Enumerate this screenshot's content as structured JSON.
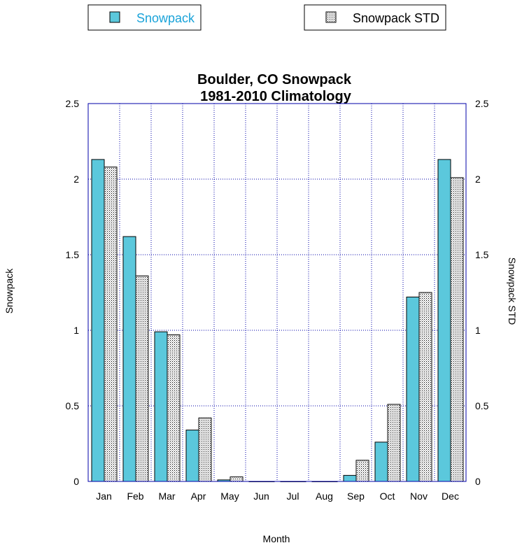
{
  "chart_data": {
    "type": "bar",
    "title": [
      "Boulder, CO Snowpack",
      "1981-2010 Climatology"
    ],
    "xlabel": "Month",
    "ylabel": "Snowpack",
    "y2label": "Snowpack STD",
    "categories": [
      "Jan",
      "Feb",
      "Mar",
      "Apr",
      "May",
      "Jun",
      "Jul",
      "Aug",
      "Sep",
      "Oct",
      "Nov",
      "Dec"
    ],
    "ylim": [
      0,
      2.5
    ],
    "yticks": [
      "0",
      "0.5",
      "1",
      "1.5",
      "2",
      "2.5"
    ],
    "grid": true,
    "legend_position": "top",
    "series": [
      {
        "name": "Snowpack",
        "color": "#5bc8dc",
        "fill": "solid",
        "values": [
          2.13,
          1.62,
          0.99,
          0.34,
          0.01,
          0,
          0,
          0,
          0.04,
          0.26,
          1.22,
          2.13
        ]
      },
      {
        "name": "Snowpack STD",
        "color": "#ffffff",
        "fill": "dotted",
        "values": [
          2.08,
          1.36,
          0.97,
          0.42,
          0.03,
          0,
          0,
          0,
          0.14,
          0.51,
          1.25,
          2.01
        ]
      }
    ]
  },
  "legend_text_colors": [
    "#1aa3d9",
    "#000000"
  ],
  "grid_color": "#0000aa"
}
